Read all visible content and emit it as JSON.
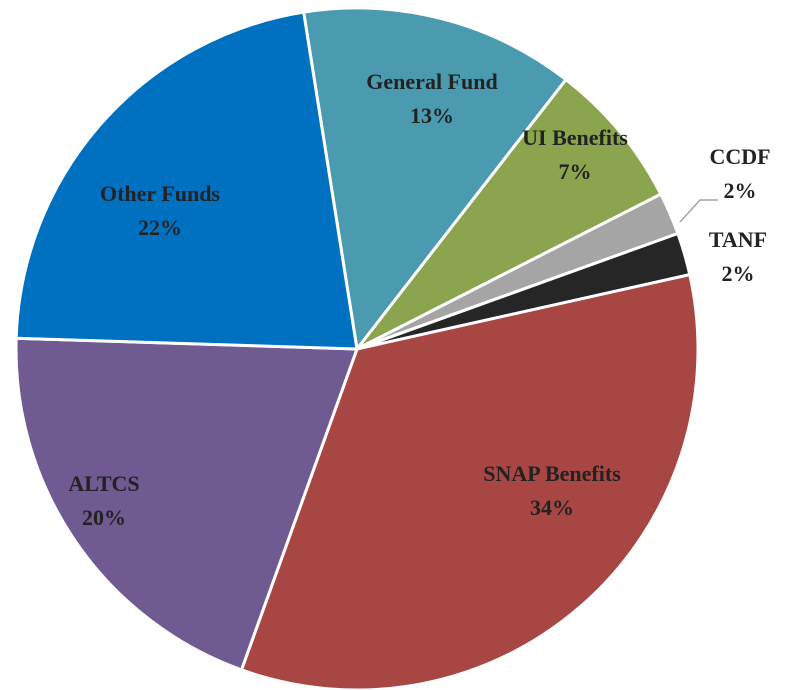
{
  "chart_data": {
    "type": "pie",
    "categories": [
      "General Fund",
      "UI Benefits",
      "CCDF",
      "TANF",
      "SNAP Benefits",
      "ALTCS",
      "Other Funds"
    ],
    "values": [
      13,
      7,
      2,
      2,
      34,
      20,
      22
    ],
    "value_labels": [
      "13%",
      "7%",
      "2%",
      "2%",
      "34%",
      "20%",
      "22%"
    ],
    "colors": [
      "#4a9bb0",
      "#8ba54e",
      "#a5a5a5",
      "#262626",
      "#a84643",
      "#6f5a92",
      "#0070c0"
    ]
  }
}
